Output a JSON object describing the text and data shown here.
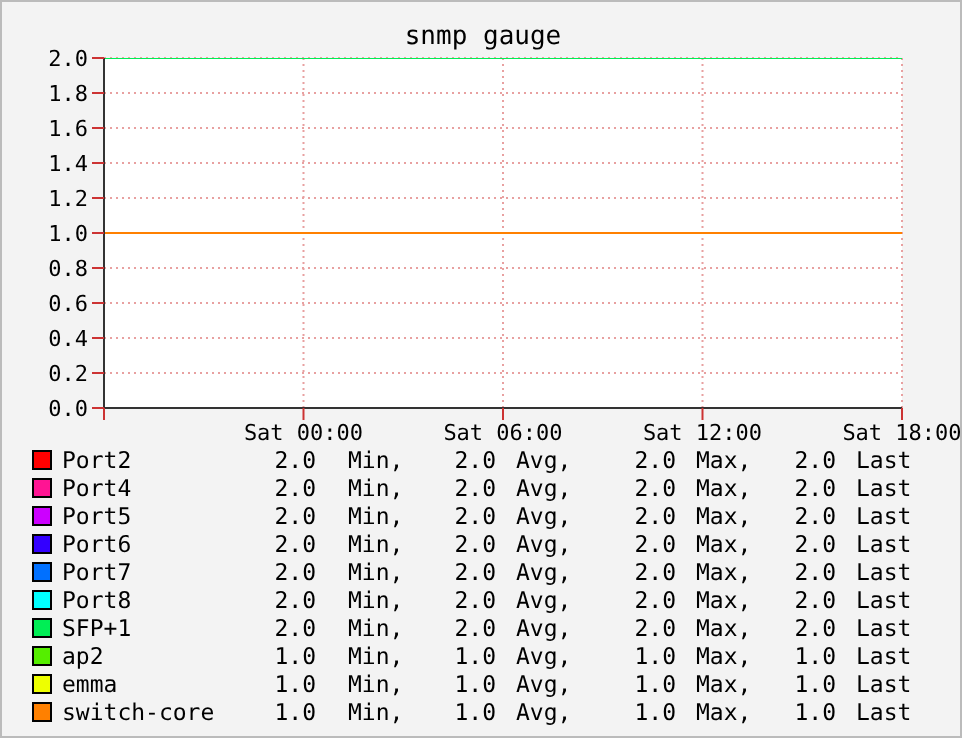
{
  "chart_data": {
    "type": "line",
    "title": "snmp gauge",
    "categories": [
      null,
      "Sat 00:00",
      "Sat 06:00",
      "Sat 12:00",
      "Sat 18:00"
    ],
    "ylim": [
      0,
      2
    ],
    "yticks": [
      {
        "value": 0,
        "label": "0.0"
      },
      {
        "value": 0.2,
        "label": "0.2"
      },
      {
        "value": 0.4,
        "label": "0.4"
      },
      {
        "value": 0.6,
        "label": "0.6"
      },
      {
        "value": 0.8,
        "label": "0.8"
      },
      {
        "value": 1,
        "label": "1.0"
      },
      {
        "value": 1.2,
        "label": "1.2"
      },
      {
        "value": 1.4,
        "label": "1.4"
      },
      {
        "value": 1.6,
        "label": "1.6"
      },
      {
        "value": 1.8,
        "label": "1.8"
      },
      {
        "value": 2,
        "label": "2.0"
      }
    ],
    "grid": true,
    "legend": "bottom",
    "marker": "none",
    "series": [
      {
        "name": "Port2",
        "color": "#ff0000",
        "values": [
          null,
          null,
          null,
          null,
          null
        ]
      },
      {
        "name": "Port4",
        "color": "#ff1493",
        "values": [
          null,
          null,
          null,
          null,
          null
        ]
      },
      {
        "name": "Port5",
        "color": "#cc00ff",
        "values": [
          null,
          null,
          null,
          null,
          null
        ]
      },
      {
        "name": "Port6",
        "color": "#3300ff",
        "values": [
          null,
          null,
          null,
          null,
          null
        ]
      },
      {
        "name": "Port7",
        "color": "#0070ff",
        "values": [
          null,
          null,
          null,
          null,
          null
        ]
      },
      {
        "name": "Port8",
        "color": "#00ffff",
        "values": [
          null,
          null,
          null,
          null,
          null
        ]
      },
      {
        "name": "SFP+1",
        "color": "#00ee55",
        "values": [
          2,
          2,
          2,
          2,
          2
        ]
      },
      {
        "name": "ap2",
        "color": "#55ee00",
        "values": [
          null,
          null,
          null,
          null,
          null
        ]
      },
      {
        "name": "emma",
        "color": "#eeff00",
        "values": [
          null,
          null,
          null,
          null,
          null
        ]
      },
      {
        "name": "switch-core",
        "color": "#ff8000",
        "values": [
          1,
          1,
          1,
          1,
          1
        ]
      }
    ],
    "annotations": [
      "2.0 Min, 2.0 Avg, 2.0 Max, 2.0 Last",
      "2.0 Min, 2.0 Avg, 2.0 Max, 2.0 Last",
      "2.0 Min, 2.0 Avg, 2.0 Max, 2.0 Last",
      "2.0 Min, 2.0 Avg, 2.0 Max, 2.0 Last",
      "2.0 Min, 2.0 Avg, 2.0 Max, 2.0 Last",
      "2.0 Min, 2.0 Avg, 2.0 Max, 2.0 Last",
      "2.0 Min, 2.0 Avg, 2.0 Max, 2.0 Last",
      "1.0 Min, 1.0 Avg, 1.0 Max, 1.0 Last",
      "1.0 Min, 1.0 Avg, 1.0 Max, 1.0 Last",
      "1.0 Min, 1.0 Avg, 1.0 Max, 1.0 Last"
    ]
  }
}
